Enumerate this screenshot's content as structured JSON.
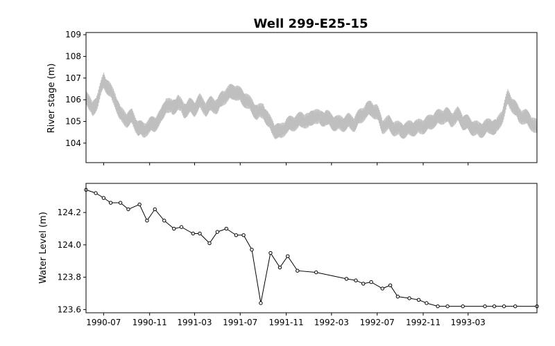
{
  "chart_data": [
    {
      "type": "line",
      "title": "Well 299-E25-15",
      "ylabel": "River stage (m)",
      "xlabel": "",
      "ylim": [
        103.1,
        109.1
      ],
      "yticks": [
        "104",
        "105",
        "106",
        "107",
        "108",
        "109"
      ],
      "grid": false,
      "line_color": "#bfbfbf",
      "series": [
        {
          "x": [
            "1990-05-15",
            "1990-06-01",
            "1990-06-15",
            "1990-07-01",
            "1990-07-15",
            "1990-08-01",
            "1990-08-15",
            "1990-09-01",
            "1990-09-15",
            "1990-10-01",
            "1990-10-15",
            "1990-11-01",
            "1990-11-15",
            "1990-12-01",
            "1990-12-15",
            "1991-01-01",
            "1991-01-15",
            "1991-02-01",
            "1991-02-15",
            "1991-03-01",
            "1991-03-15",
            "1991-04-01",
            "1991-04-15",
            "1991-05-01",
            "1991-05-15",
            "1991-06-01",
            "1991-06-15",
            "1991-07-01",
            "1991-07-15",
            "1991-08-01",
            "1991-08-15",
            "1991-09-01",
            "1991-09-15",
            "1991-10-01",
            "1991-10-15",
            "1991-11-01",
            "1991-11-15",
            "1991-12-01",
            "1991-12-15",
            "1992-01-01",
            "1992-01-15",
            "1992-02-01",
            "1992-02-15",
            "1992-03-01",
            "1992-03-15",
            "1992-04-01",
            "1992-04-15",
            "1992-05-01",
            "1992-05-15",
            "1992-06-01",
            "1992-06-15",
            "1992-07-01",
            "1992-07-15",
            "1992-08-01",
            "1992-08-15",
            "1992-09-01",
            "1992-09-15",
            "1992-10-01",
            "1992-10-15",
            "1992-11-01",
            "1992-11-15",
            "1992-12-01",
            "1992-12-15",
            "1993-01-01",
            "1993-01-15",
            "1993-02-01",
            "1993-02-15",
            "1993-03-01",
            "1993-03-15",
            "1993-04-01",
            "1993-04-15",
            "1993-05-01",
            "1993-05-15",
            "1993-06-01",
            "1993-06-15",
            "1993-07-01",
            "1993-07-15",
            "1993-08-01",
            "1993-08-15",
            "1993-09-01"
          ],
          "values": [
            106.2,
            105.5,
            106.0,
            106.9,
            106.5,
            106.0,
            105.3,
            105.1,
            105.2,
            104.7,
            104.6,
            104.8,
            104.9,
            105.2,
            105.8,
            105.6,
            105.9,
            105.5,
            105.7,
            105.6,
            105.9,
            105.6,
            105.8,
            105.7,
            106.1,
            106.3,
            106.4,
            106.2,
            106.0,
            105.7,
            105.4,
            105.5,
            105.0,
            104.6,
            104.5,
            104.8,
            104.9,
            105.0,
            105.1,
            105.0,
            105.3,
            105.1,
            105.2,
            105.0,
            104.9,
            104.9,
            105.0,
            104.9,
            105.2,
            105.5,
            105.6,
            105.4,
            104.8,
            104.9,
            104.7,
            104.6,
            104.6,
            104.7,
            104.7,
            104.8,
            104.9,
            105.1,
            105.2,
            105.3,
            105.1,
            105.3,
            105.0,
            104.9,
            104.7,
            104.6,
            104.7,
            104.8,
            104.7,
            105.3,
            106.1,
            105.7,
            105.3,
            105.2,
            105.0,
            104.7
          ]
        }
      ]
    },
    {
      "type": "line",
      "title": "",
      "ylabel": "Water Level (m)",
      "xlabel": "",
      "ylim": [
        123.58,
        124.38
      ],
      "yticks": [
        "123.6",
        "123.8",
        "124.0",
        "124.2"
      ],
      "xlim": [
        "1990-05-15",
        "1993-09-01"
      ],
      "xticks": [
        "1990-07",
        "1990-11",
        "1991-03",
        "1991-07",
        "1991-11",
        "1992-03",
        "1992-07",
        "1992-11",
        "1993-03"
      ],
      "grid": false,
      "line_color": "#000000",
      "marker": "circle",
      "series": [
        {
          "x": [
            "1990-05-15",
            "1990-06-10",
            "1990-07-01",
            "1990-07-20",
            "1990-08-15",
            "1990-09-05",
            "1990-10-05",
            "1990-10-25",
            "1990-11-15",
            "1990-12-10",
            "1991-01-05",
            "1991-01-25",
            "1991-02-25",
            "1991-03-15",
            "1991-04-10",
            "1991-05-01",
            "1991-05-25",
            "1991-06-20",
            "1991-07-10",
            "1991-08-01",
            "1991-08-25",
            "1991-09-20",
            "1991-10-15",
            "1991-11-05",
            "1991-12-01",
            "1992-01-20",
            "1992-04-10",
            "1992-05-05",
            "1992-05-25",
            "1992-06-15",
            "1992-07-15",
            "1992-08-05",
            "1992-08-25",
            "1992-09-25",
            "1992-10-20",
            "1992-11-10",
            "1992-12-10",
            "1993-01-05",
            "1993-02-15",
            "1993-04-15",
            "1993-05-10",
            "1993-06-05",
            "1993-07-05",
            "1993-09-01"
          ],
          "values": [
            124.34,
            124.32,
            124.29,
            124.26,
            124.26,
            124.22,
            124.25,
            124.15,
            124.22,
            124.15,
            124.1,
            124.11,
            124.07,
            124.07,
            124.01,
            124.08,
            124.1,
            124.06,
            124.06,
            123.97,
            123.64,
            123.95,
            123.86,
            123.93,
            123.84,
            123.83,
            123.79,
            123.78,
            123.76,
            123.77,
            123.73,
            123.75,
            123.68,
            123.67,
            123.66,
            123.64,
            123.62,
            123.62,
            123.62,
            123.62,
            123.62,
            123.62,
            123.62,
            123.62
          ]
        }
      ]
    }
  ]
}
